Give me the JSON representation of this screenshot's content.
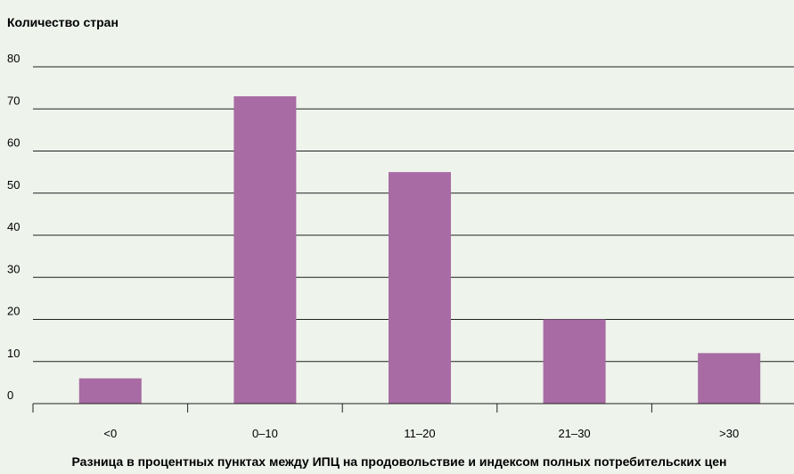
{
  "chart_data": {
    "type": "bar",
    "ylabel": "Количество стран",
    "xlabel": "Разница в процентных пунктах между ИПЦ на продовольствие и индексом полных потребительских цен",
    "categories": [
      "<0",
      "0–10",
      "11–20",
      "21–30",
      ">30"
    ],
    "values": [
      6,
      73,
      55,
      20,
      12
    ],
    "ylim": [
      0,
      80
    ],
    "yticks": [
      0,
      10,
      20,
      30,
      40,
      50,
      60,
      70,
      80
    ],
    "grid": true,
    "bar_color": "#a86ba4",
    "background": "#eef3ec"
  }
}
